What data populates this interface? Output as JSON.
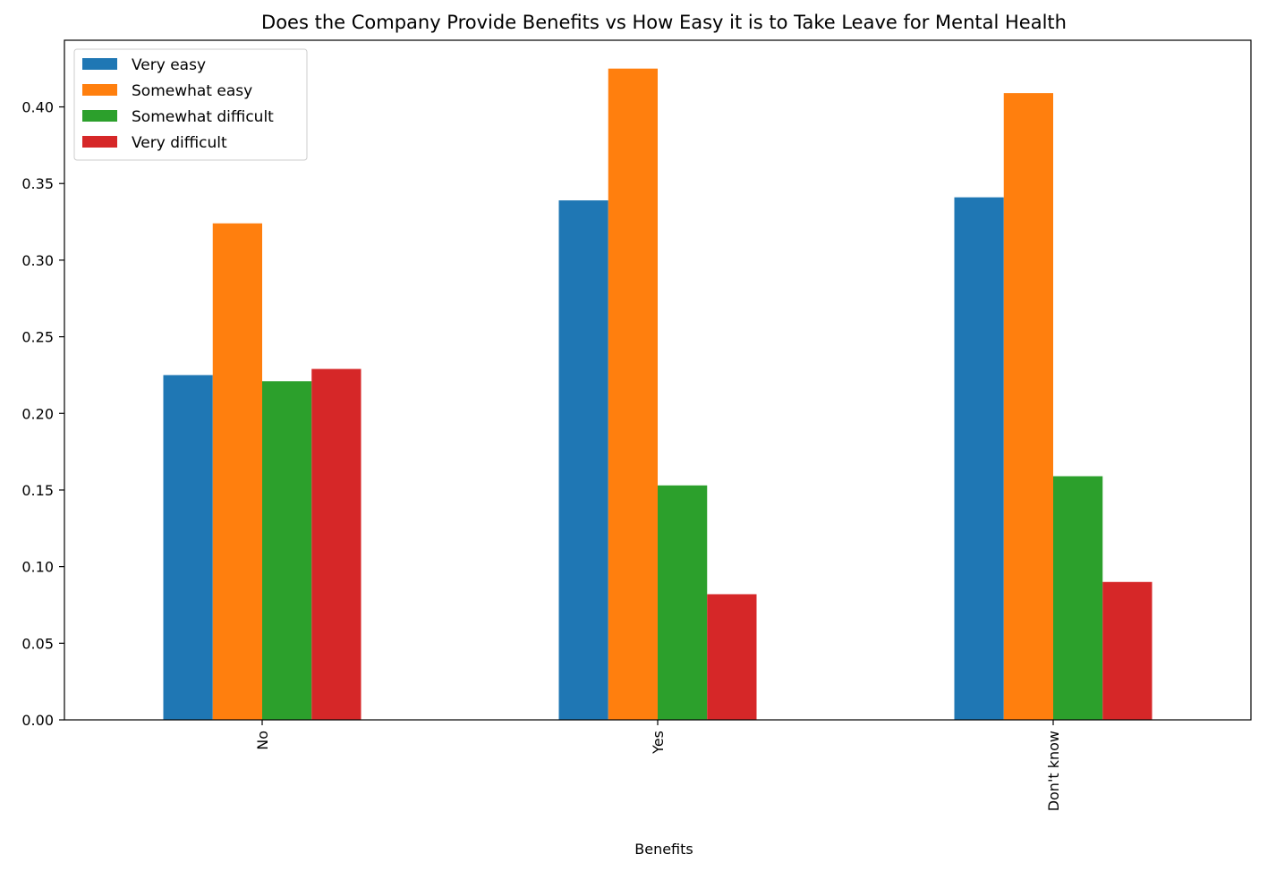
{
  "chart_data": {
    "type": "bar",
    "title": "Does the Company Provide Benefits vs How Easy it is to Take Leave for Mental Health",
    "xlabel": "Benefits",
    "ylabel": "",
    "categories": [
      "No",
      "Yes",
      "Don't know"
    ],
    "series": [
      {
        "name": "Very easy",
        "color": "#1f77b4",
        "values": [
          0.225,
          0.339,
          0.341
        ]
      },
      {
        "name": "Somewhat easy",
        "color": "#ff7f0e",
        "values": [
          0.324,
          0.425,
          0.409
        ]
      },
      {
        "name": "Somewhat difficult",
        "color": "#2ca02c",
        "values": [
          0.221,
          0.153,
          0.159
        ]
      },
      {
        "name": "Very difficult",
        "color": "#d62728",
        "values": [
          0.229,
          0.082,
          0.09
        ]
      }
    ],
    "ylim": [
      0,
      0.4435
    ],
    "yticks": [
      "0.00",
      "0.05",
      "0.10",
      "0.15",
      "0.20",
      "0.25",
      "0.30",
      "0.35",
      "0.40"
    ],
    "legend_position": "upper left",
    "grid": false
  }
}
